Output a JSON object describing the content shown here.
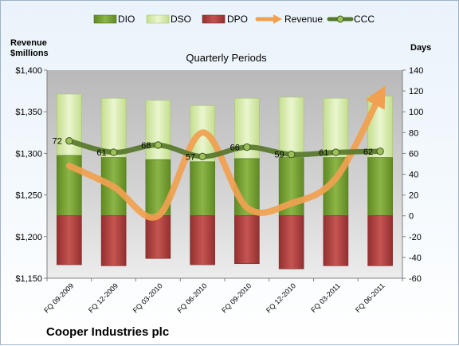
{
  "chart_data": {
    "type": "bar",
    "title": "Quarterly Periods",
    "company": "Cooper Industries plc",
    "ylabel_left": [
      "Revenue",
      "$millions"
    ],
    "ylabel_right": "Days",
    "categories": [
      "FQ 09-2009",
      "FQ 12-2009",
      "FQ 03-2010",
      "FQ 06-2010",
      "FQ 09-2010",
      "FQ 12-2010",
      "FQ 03-2011",
      "FQ 06-2011"
    ],
    "left_axis": {
      "min": 1150,
      "max": 1400,
      "step": 50,
      "ticks": [
        "$1,150",
        "$1,200",
        "$1,250",
        "$1,300",
        "$1,350",
        "$1,400"
      ]
    },
    "right_axis": {
      "min": -60,
      "max": 140,
      "step": 20,
      "ticks": [
        "-60",
        "-40",
        "-20",
        "0",
        "20",
        "40",
        "60",
        "80",
        "100",
        "120",
        "140"
      ]
    },
    "series": [
      {
        "name": "DIO",
        "kind": "bar-stack-positive",
        "color": "#77a033",
        "values": [
          58,
          56,
          54,
          52,
          55,
          56,
          56,
          56
        ]
      },
      {
        "name": "DSO",
        "kind": "bar-stack-positive",
        "color": "#d8ecb0",
        "values": [
          59,
          57,
          57,
          54,
          58,
          58,
          57,
          59
        ]
      },
      {
        "name": "DPO",
        "kind": "bar-negative",
        "color": "#b3403f",
        "values": [
          -47,
          -48,
          -41,
          -47,
          -46,
          -51,
          -48,
          -48
        ]
      },
      {
        "name": "Revenue",
        "kind": "line",
        "color": "#f0a050",
        "values": [
          1285,
          1260,
          1225,
          1325,
          1235,
          1240,
          1270,
          1370
        ]
      },
      {
        "name": "CCC",
        "kind": "line",
        "color": "#57772a",
        "values": [
          72,
          61,
          68,
          57,
          66,
          59,
          61,
          62
        ],
        "labels": [
          "72",
          "61",
          "68",
          "57",
          "66",
          "59",
          "61",
          "62"
        ]
      }
    ],
    "legend": [
      "DIO",
      "DSO",
      "DPO",
      "Revenue",
      "CCC"
    ],
    "legend_position": "top",
    "grid": false
  }
}
